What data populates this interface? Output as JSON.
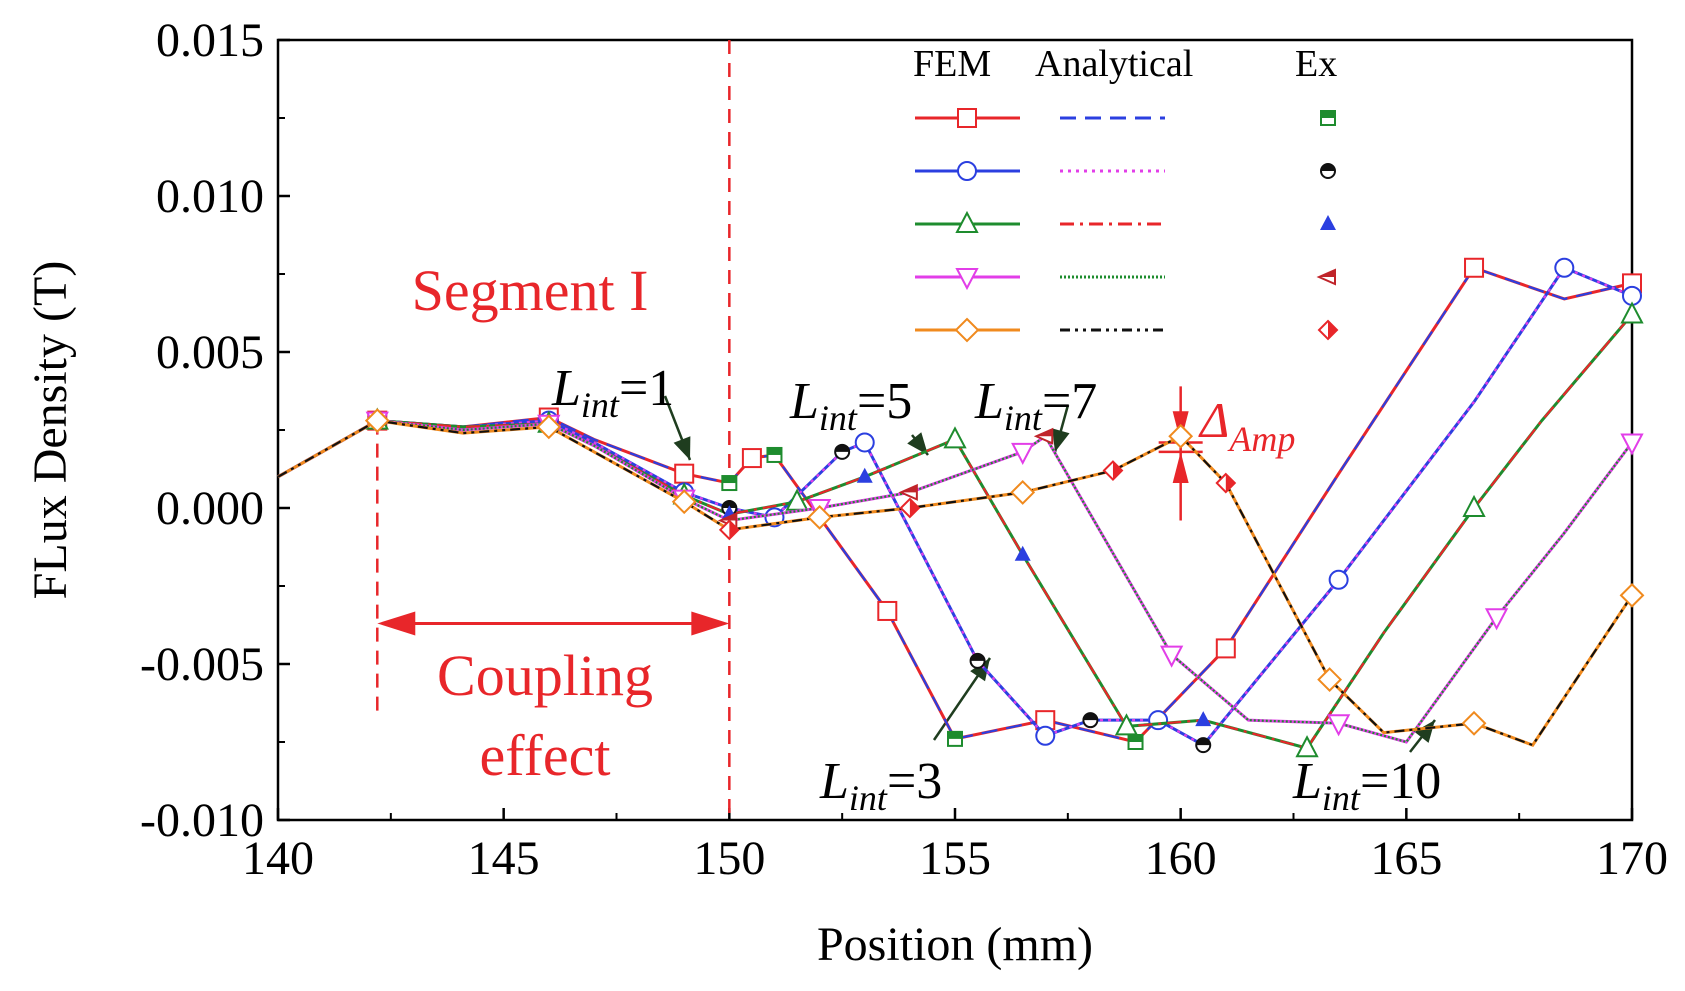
{
  "chart_data": {
    "type": "line",
    "xlabel": "Position (mm)",
    "ylabel": "FLux Density (T)",
    "xlim": [
      140,
      170
    ],
    "ylim": [
      -0.01,
      0.015
    ],
    "x_ticks": [
      "140",
      "145",
      "150",
      "155",
      "160",
      "165",
      "170"
    ],
    "y_ticks": [
      "0.015",
      "0.010",
      "0.005",
      "0.000",
      "-0.005",
      "-0.010"
    ],
    "legend": {
      "position": "top-right",
      "headers": [
        "FEM",
        "Analytical",
        "Ex"
      ]
    },
    "colors": {
      "L1": "#e8262a",
      "L3": "#2b3fe0",
      "L5": "#1e8c2e",
      "L7": "#e23ee8",
      "L10": "#f08a1e",
      "annotation": "#e8262a",
      "arrow": "#1f3d1f"
    },
    "series": [
      {
        "name": "L_int=1",
        "color": "#e8262a",
        "marker": "square",
        "analytical_color": "#2b3fe0",
        "analytical_dash": "dash",
        "ex_marker": "square-half",
        "ex_color": "#1e8c2e",
        "x": [
          140,
          142.2,
          144.1,
          146.0,
          147.0,
          149.0,
          150.0,
          150.5,
          151.0,
          153.5,
          155.0,
          157.0,
          159.0,
          161.0,
          163.5,
          166.5,
          168.5,
          170.0
        ],
        "y": [
          0.001,
          0.0028,
          0.0026,
          0.0029,
          0.0022,
          0.0011,
          0.0008,
          0.0016,
          0.0017,
          -0.0033,
          -0.0074,
          -0.0068,
          -0.0075,
          -0.0045,
          0.0011,
          0.0077,
          0.0067,
          0.0072
        ]
      },
      {
        "name": "L_int=3",
        "color": "#2b3fe0",
        "marker": "circle",
        "analytical_color": "#e23ee8",
        "analytical_dash": "dot",
        "ex_marker": "circle-half",
        "ex_color": "#111111",
        "x": [
          140,
          142.2,
          144.1,
          146.0,
          147.0,
          149.0,
          150.0,
          151.0,
          152.5,
          153.0,
          155.5,
          157.0,
          158.0,
          159.5,
          160.5,
          163.5,
          166.5,
          168.5,
          170.0
        ],
        "y": [
          0.001,
          0.0028,
          0.0026,
          0.0028,
          0.0021,
          0.0005,
          0.0,
          -0.0003,
          0.0018,
          0.0021,
          -0.0049,
          -0.0073,
          -0.0068,
          -0.0068,
          -0.0076,
          -0.0023,
          0.0034,
          0.0077,
          0.0068
        ]
      },
      {
        "name": "L_int=5",
        "color": "#1e8c2e",
        "marker": "triangle-up",
        "analytical_color": "#e8262a",
        "analytical_dash": "dashdot",
        "ex_marker": "triangle-half",
        "ex_color": "#2b3fe0",
        "x": [
          140,
          142.2,
          144.1,
          146.0,
          147.0,
          149.0,
          150.0,
          151.5,
          153.0,
          155.0,
          156.5,
          158.8,
          160.5,
          162.8,
          164.5,
          166.5,
          168.0,
          170.0
        ],
        "y": [
          0.001,
          0.0028,
          0.0026,
          0.0027,
          0.002,
          0.0004,
          -0.0002,
          0.0002,
          0.001,
          0.0022,
          -0.0015,
          -0.007,
          -0.0068,
          -0.0077,
          -0.004,
          0.0,
          0.0028,
          0.0062
        ]
      },
      {
        "name": "L_int=7",
        "color": "#e23ee8",
        "marker": "triangle-down",
        "analytical_color": "#1e8c2e",
        "analytical_dash": "fine-dot",
        "ex_marker": "triangle-left-half",
        "ex_color": "#c0242a",
        "x": [
          140,
          142.2,
          144.1,
          146.0,
          147.0,
          149.0,
          150.0,
          152.0,
          154.0,
          156.5,
          157.0,
          159.8,
          161.5,
          163.5,
          165.0,
          167.0,
          168.5,
          170.0
        ],
        "y": [
          0.001,
          0.0028,
          0.0025,
          0.0027,
          0.002,
          0.0003,
          -0.0004,
          0.0,
          0.0005,
          0.0018,
          0.0023,
          -0.0047,
          -0.0068,
          -0.0069,
          -0.0075,
          -0.0035,
          -0.0008,
          0.0021
        ]
      },
      {
        "name": "L_int=10",
        "color": "#f08a1e",
        "marker": "diamond",
        "analytical_color": "#111111",
        "analytical_dash": "dashdotdot",
        "ex_marker": "diamond-half",
        "ex_color": "#e8262a",
        "x": [
          140,
          142.2,
          144.1,
          146.0,
          147.0,
          149.0,
          150.0,
          152.0,
          154.0,
          156.5,
          158.5,
          160.0,
          161.0,
          163.3,
          164.5,
          166.5,
          167.8,
          170.0
        ],
        "y": [
          0.001,
          0.0028,
          0.0024,
          0.0026,
          0.0018,
          0.0002,
          -0.0007,
          -0.0003,
          0.0,
          0.0005,
          0.0012,
          0.0023,
          0.0008,
          -0.0055,
          -0.0072,
          -0.0069,
          -0.0076,
          -0.0028
        ]
      }
    ],
    "annotations": {
      "segment_label": "Segment I",
      "coupling_line1": "Coupling",
      "coupling_line2": "effect",
      "coupling_range": [
        142.2,
        150.0
      ],
      "delta_amp": "Δ",
      "delta_amp_sub": "Amp",
      "delta_amp_x": 160.0,
      "L_main": "L",
      "L_sub": "int",
      "labels": {
        "L1": "=1",
        "L3": "=3",
        "L5": "=5",
        "L7": "=7",
        "L10": "=10"
      }
    }
  }
}
